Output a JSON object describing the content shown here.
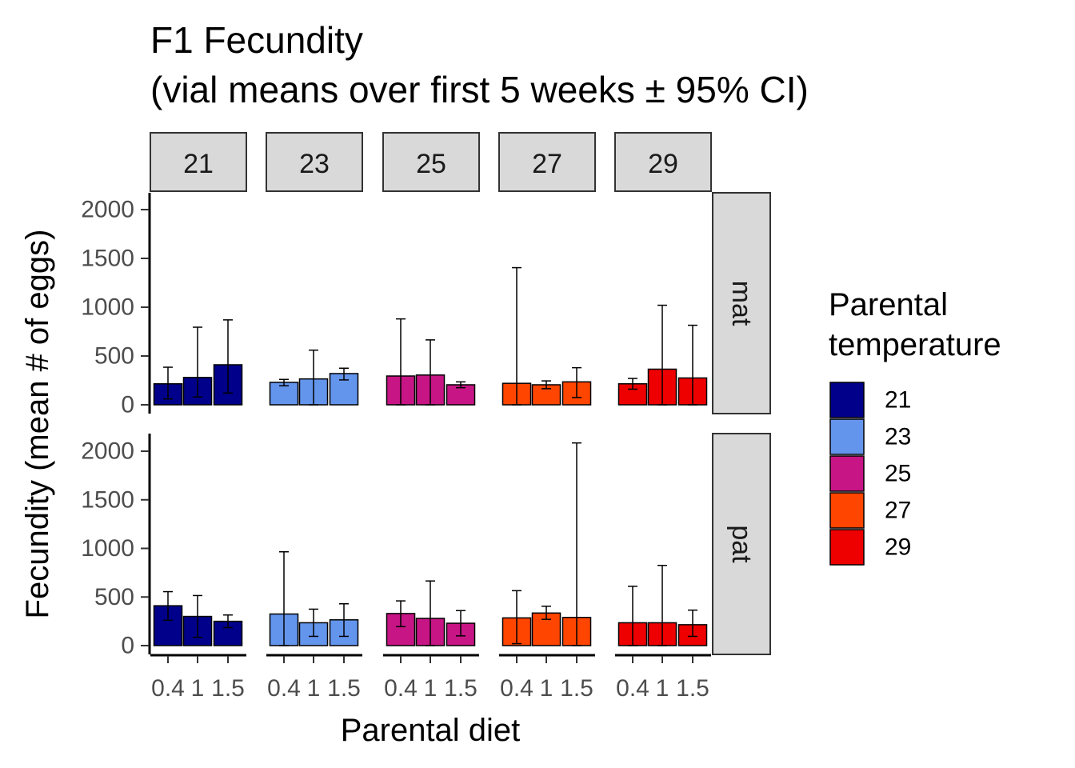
{
  "chart_data": {
    "type": "bar",
    "title_line1": "F1 Fecundity",
    "title_line2": "(vial means over first 5 weeks ± 95% CI)",
    "xlabel": "Parental diet",
    "ylabel": "Fecundity (mean # of eggs)",
    "categories": [
      "0.4",
      "1",
      "1.5"
    ],
    "ylim": [
      0,
      2100
    ],
    "yticks": [
      0,
      500,
      1000,
      1500,
      2000
    ],
    "legend": {
      "title_line1": "Parental",
      "title_line2": "temperature",
      "position": "right",
      "entries": [
        {
          "label": "21",
          "color": "#00008B"
        },
        {
          "label": "23",
          "color": "#6495ED"
        },
        {
          "label": "25",
          "color": "#C71585"
        },
        {
          "label": "27",
          "color": "#FF4500"
        },
        {
          "label": "29",
          "color": "#EE0000"
        }
      ]
    },
    "facet_cols": [
      "21",
      "23",
      "25",
      "27",
      "29"
    ],
    "facet_rows": [
      "mat",
      "pat"
    ],
    "panels": [
      {
        "row": "mat",
        "col": "21",
        "values": [
          215,
          280,
          410
        ],
        "ci_low": [
          60,
          80,
          120
        ],
        "ci_high": [
          385,
          795,
          870
        ]
      },
      {
        "row": "mat",
        "col": "23",
        "values": [
          230,
          265,
          320
        ],
        "ci_low": [
          195,
          0,
          255
        ],
        "ci_high": [
          260,
          560,
          375
        ]
      },
      {
        "row": "mat",
        "col": "25",
        "values": [
          295,
          305,
          205
        ],
        "ci_low": [
          0,
          0,
          175
        ],
        "ci_high": [
          880,
          665,
          235
        ]
      },
      {
        "row": "mat",
        "col": "27",
        "values": [
          220,
          205,
          235
        ],
        "ci_low": [
          0,
          165,
          75
        ],
        "ci_high": [
          1405,
          245,
          380
        ]
      },
      {
        "row": "mat",
        "col": "29",
        "values": [
          215,
          365,
          275
        ],
        "ci_low": [
          160,
          0,
          0
        ],
        "ci_high": [
          270,
          1020,
          815
        ]
      },
      {
        "row": "pat",
        "col": "21",
        "values": [
          410,
          300,
          250
        ],
        "ci_low": [
          260,
          85,
          185
        ],
        "ci_high": [
          555,
          515,
          315
        ]
      },
      {
        "row": "pat",
        "col": "23",
        "values": [
          325,
          235,
          265
        ],
        "ci_low": [
          0,
          95,
          95
        ],
        "ci_high": [
          965,
          375,
          430
        ]
      },
      {
        "row": "pat",
        "col": "25",
        "values": [
          330,
          280,
          230
        ],
        "ci_low": [
          195,
          0,
          100
        ],
        "ci_high": [
          460,
          665,
          360
        ]
      },
      {
        "row": "pat",
        "col": "27",
        "values": [
          285,
          335,
          290
        ],
        "ci_low": [
          20,
          270,
          0
        ],
        "ci_high": [
          565,
          405,
          2085
        ]
      },
      {
        "row": "pat",
        "col": "29",
        "values": [
          235,
          235,
          215
        ],
        "ci_low": [
          0,
          0,
          95
        ],
        "ci_high": [
          610,
          825,
          365
        ]
      }
    ]
  }
}
